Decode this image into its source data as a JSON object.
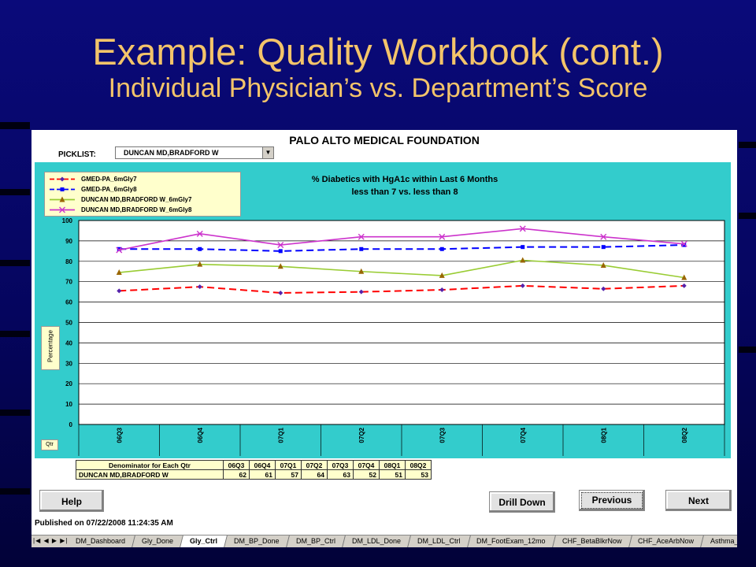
{
  "slide": {
    "title_line1": "Example: Quality Workbook (cont.)",
    "title_line2": "Individual Physician’s vs. Department’s Score"
  },
  "sheet": {
    "title": "PALO ALTO  MEDICAL  FOUNDATION",
    "picklist_label": "PICKLIST:",
    "picklist_value": "DUNCAN MD,BRADFORD W"
  },
  "chart_data": {
    "type": "line",
    "title_line1": "% Diabetics with HgA1c within Last 6 Months",
    "title_line2": "less than 7 vs. less than 8",
    "ylabel": "Percentage",
    "xlabel": "Qtr",
    "ylim": [
      0,
      100
    ],
    "yticks": [
      0,
      10,
      20,
      30,
      40,
      50,
      60,
      70,
      80,
      90,
      100
    ],
    "categories": [
      "06Q3",
      "06Q4",
      "07Q1",
      "07Q2",
      "07Q3",
      "07Q4",
      "08Q1",
      "08Q2"
    ],
    "legend_position": "top-left",
    "grid": true,
    "series": [
      {
        "name": "GMED-PA_6mGly7",
        "color": "#ff0000",
        "dash": true,
        "marker": "diamond",
        "marker_color": "#5522aa",
        "values": [
          65.5,
          67.5,
          64.5,
          65,
          66,
          68,
          66.5,
          68
        ]
      },
      {
        "name": "GMED-PA_6mGly8",
        "color": "#0000ff",
        "dash": true,
        "marker": "square",
        "marker_color": "#0000ff",
        "values": [
          86,
          86,
          85,
          86,
          86,
          87,
          87,
          88
        ]
      },
      {
        "name": "DUNCAN MD,BRADFORD W_6mGly7",
        "color": "#99cc33",
        "dash": false,
        "marker": "triangle",
        "marker_color": "#996600",
        "values": [
          74.5,
          78.5,
          77.5,
          75,
          73,
          80.5,
          78,
          72
        ]
      },
      {
        "name": "DUNCAN MD,BRADFORD W_6mGly8",
        "color": "#cc33cc",
        "dash": false,
        "marker": "x",
        "marker_color": "#cc33cc",
        "values": [
          85.5,
          93.5,
          88,
          92,
          92,
          96,
          92,
          88.5
        ]
      }
    ]
  },
  "denominator": {
    "header_label": "Denominator for Each Qtr",
    "quarters": [
      "06Q3",
      "06Q4",
      "07Q1",
      "07Q2",
      "07Q3",
      "07Q4",
      "08Q1",
      "08Q2"
    ],
    "row_label": "DUNCAN MD,BRADFORD W",
    "values": [
      "62",
      "61",
      "57",
      "64",
      "63",
      "52",
      "51",
      "53"
    ]
  },
  "buttons": {
    "help": "Help",
    "drill_down": "Drill Down",
    "previous": "Previous",
    "next": "Next"
  },
  "published": "Published on 07/22/2008 11:24:35 AM",
  "sheet_tabs": [
    "DM_Dashboard",
    "Gly_Done",
    "Gly_Ctrl",
    "DM_BP_Done",
    "DM_BP_Ctrl",
    "DM_LDL_Done",
    "DM_LDL_Ctrl",
    "DM_FootExam_12mo",
    "CHF_BetaBlkrNow",
    "CHF_AceArbNow",
    "Asthma_"
  ],
  "active_tab": "Gly_Ctrl",
  "tab_nav_icons": [
    "first-sheet-icon",
    "prev-sheet-icon",
    "next-sheet-icon",
    "last-sheet-icon"
  ]
}
